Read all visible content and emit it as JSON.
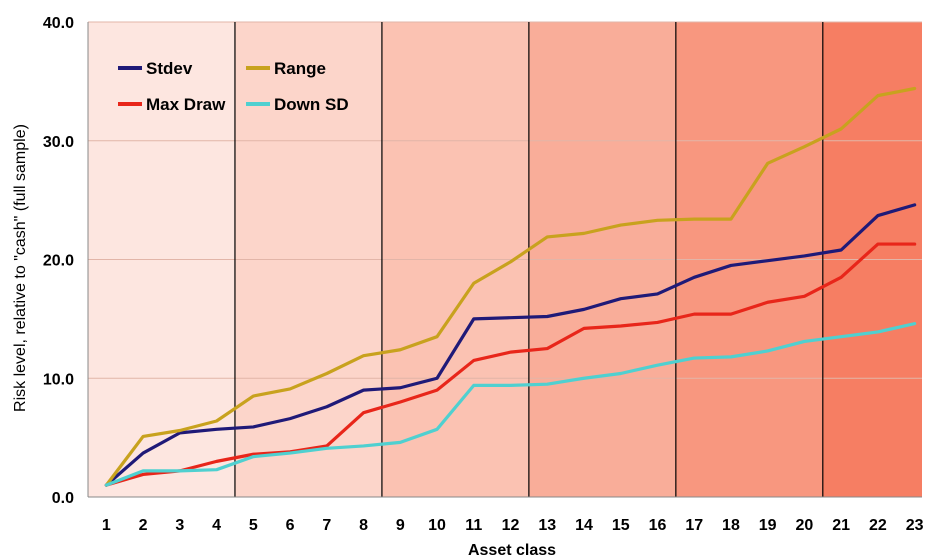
{
  "chart_data": {
    "type": "line",
    "title": "",
    "xlabel": "Asset class",
    "ylabel": "Risk level, relative to \"cash\" (full sample)",
    "x": [
      1,
      2,
      3,
      4,
      5,
      6,
      7,
      8,
      9,
      10,
      11,
      12,
      13,
      14,
      15,
      16,
      17,
      18,
      19,
      20,
      21,
      22,
      23
    ],
    "x_tick_labels": [
      "1",
      "2",
      "3",
      "4",
      "5",
      "6",
      "7",
      "8",
      "9",
      "10",
      "11",
      "12",
      "13",
      "14",
      "15",
      "16",
      "17",
      "18",
      "19",
      "20",
      "21",
      "22",
      "23"
    ],
    "y_ticks": [
      "0.0",
      "10.0",
      "20.0",
      "30.0",
      "40.0"
    ],
    "ylim": [
      0,
      40
    ],
    "grid": "horizontal",
    "legend_position": "top-left",
    "band_dividers_after_x": [
      4.5,
      8.5,
      12.5,
      16.5,
      20.5
    ],
    "band_colors": [
      "#fde6e0",
      "#fcd5ca",
      "#fbc2b2",
      "#f9ad99",
      "#f8977f",
      "#f67e63"
    ],
    "series": [
      {
        "name": "Stdev",
        "color": "#1f1a78",
        "values": [
          1.0,
          3.7,
          5.4,
          5.7,
          5.9,
          6.6,
          7.6,
          9.0,
          9.2,
          10.0,
          15.0,
          15.1,
          15.2,
          15.8,
          16.7,
          17.1,
          18.5,
          19.5,
          19.9,
          20.3,
          20.8,
          23.7,
          24.6
        ]
      },
      {
        "name": "Range",
        "color": "#c8a21e",
        "values": [
          1.0,
          5.1,
          5.6,
          6.4,
          8.5,
          9.1,
          10.4,
          11.9,
          12.4,
          13.5,
          18.0,
          19.8,
          21.9,
          22.2,
          22.9,
          23.3,
          23.4,
          23.4,
          28.1,
          29.5,
          31.0,
          33.8,
          34.4
        ]
      },
      {
        "name": "Max Draw",
        "color": "#e8261a",
        "values": [
          1.0,
          1.9,
          2.2,
          3.0,
          3.6,
          3.8,
          4.3,
          7.1,
          8.0,
          9.0,
          11.5,
          12.2,
          12.5,
          14.2,
          14.4,
          14.7,
          15.4,
          15.4,
          16.4,
          16.9,
          18.5,
          21.3,
          21.3
        ]
      },
      {
        "name": "Down SD",
        "color": "#4fd0d0",
        "values": [
          1.0,
          2.2,
          2.2,
          2.3,
          3.4,
          3.7,
          4.1,
          4.3,
          4.6,
          5.7,
          9.4,
          9.4,
          9.5,
          10.0,
          10.4,
          11.1,
          11.7,
          11.8,
          12.3,
          13.1,
          13.5,
          13.9,
          14.6
        ]
      }
    ]
  }
}
